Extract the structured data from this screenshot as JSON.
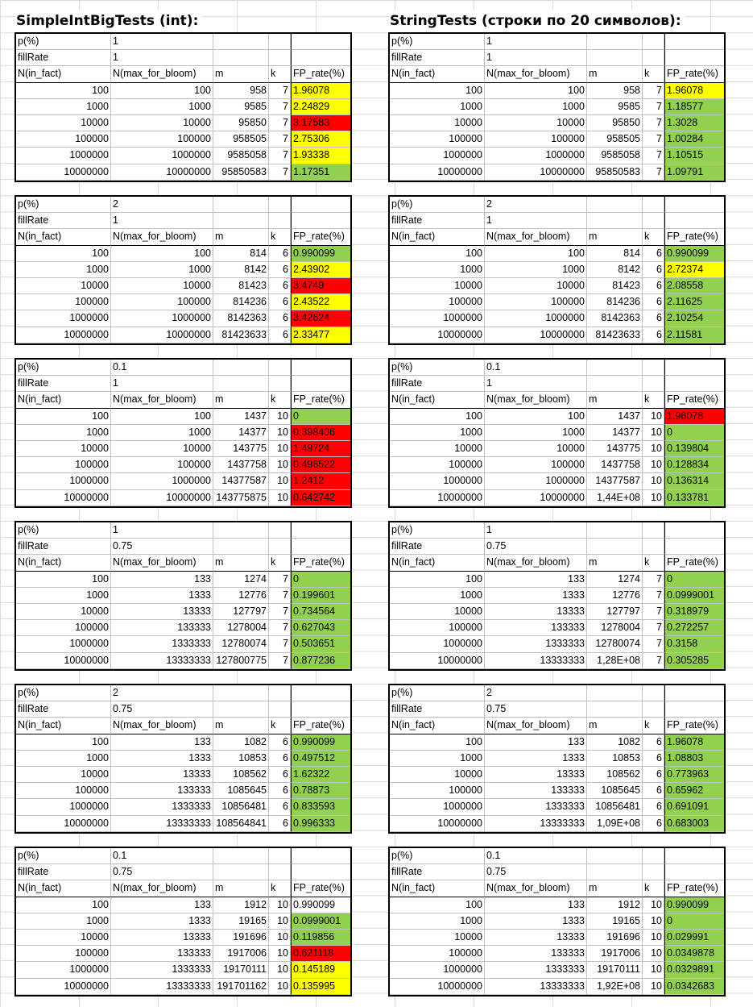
{
  "headings": {
    "left": "SimpleIntBigTests (int):",
    "right": "StringTests (строки по 20 символов):"
  },
  "labels": {
    "p": "p(%)",
    "fillRate": "fillRate",
    "col_n": "N(in_fact)",
    "col_nb": "N(max_for_bloom)",
    "col_m": "m",
    "col_k": "k",
    "col_fp": "FP_rate(%)"
  },
  "colors": {
    "green": "#92d050",
    "yellow": "#ffff00",
    "red": "#ff0000"
  },
  "left_blocks": [
    {
      "p": "1",
      "fillRate": "1",
      "rows": [
        {
          "n": "100",
          "nb": "100",
          "m": "958",
          "k": "7",
          "fp": "1.96078",
          "color": "yellow"
        },
        {
          "n": "1000",
          "nb": "1000",
          "m": "9585",
          "k": "7",
          "fp": "2.24829",
          "color": "yellow"
        },
        {
          "n": "10000",
          "nb": "10000",
          "m": "95850",
          "k": "7",
          "fp": "3.17583",
          "color": "red"
        },
        {
          "n": "100000",
          "nb": "100000",
          "m": "958505",
          "k": "7",
          "fp": "2.75306",
          "color": "yellow"
        },
        {
          "n": "1000000",
          "nb": "1000000",
          "m": "9585058",
          "k": "7",
          "fp": "1.93338",
          "color": "yellow"
        },
        {
          "n": "10000000",
          "nb": "10000000",
          "m": "95850583",
          "k": "7",
          "fp": "1.17351",
          "color": "green"
        }
      ]
    },
    {
      "p": "2",
      "fillRate": "1",
      "rows": [
        {
          "n": "100",
          "nb": "100",
          "m": "814",
          "k": "6",
          "fp": "0.990099",
          "color": "green"
        },
        {
          "n": "1000",
          "nb": "1000",
          "m": "8142",
          "k": "6",
          "fp": "2.43902",
          "color": "yellow"
        },
        {
          "n": "10000",
          "nb": "10000",
          "m": "81423",
          "k": "6",
          "fp": "3.4749",
          "color": "red"
        },
        {
          "n": "100000",
          "nb": "100000",
          "m": "814236",
          "k": "6",
          "fp": "2.43522",
          "color": "yellow"
        },
        {
          "n": "1000000",
          "nb": "1000000",
          "m": "8142363",
          "k": "6",
          "fp": "3.42624",
          "color": "red"
        },
        {
          "n": "10000000",
          "nb": "10000000",
          "m": "81423633",
          "k": "6",
          "fp": "2.33477",
          "color": "yellow"
        }
      ]
    },
    {
      "p": "0.1",
      "fillRate": "1",
      "rows": [
        {
          "n": "100",
          "nb": "100",
          "m": "1437",
          "k": "10",
          "fp": "0",
          "color": "green"
        },
        {
          "n": "1000",
          "nb": "1000",
          "m": "14377",
          "k": "10",
          "fp": "0.398406",
          "color": "red"
        },
        {
          "n": "10000",
          "nb": "10000",
          "m": "143775",
          "k": "10",
          "fp": "1.49724",
          "color": "red"
        },
        {
          "n": "100000",
          "nb": "100000",
          "m": "1437758",
          "k": "10",
          "fp": "0.496522",
          "color": "red"
        },
        {
          "n": "1000000",
          "nb": "1000000",
          "m": "14377587",
          "k": "10",
          "fp": "1.2412",
          "color": "red"
        },
        {
          "n": "10000000",
          "nb": "10000000",
          "m": "143775875",
          "k": "10",
          "fp": "0.642742",
          "color": "red"
        }
      ]
    },
    {
      "p": "1",
      "fillRate": "0.75",
      "rows": [
        {
          "n": "100",
          "nb": "133",
          "m": "1274",
          "k": "7",
          "fp": "0",
          "color": "green"
        },
        {
          "n": "1000",
          "nb": "1333",
          "m": "12776",
          "k": "7",
          "fp": "0.199601",
          "color": "green"
        },
        {
          "n": "10000",
          "nb": "13333",
          "m": "127797",
          "k": "7",
          "fp": "0.734564",
          "color": "green"
        },
        {
          "n": "100000",
          "nb": "133333",
          "m": "1278004",
          "k": "7",
          "fp": "0.627043",
          "color": "green"
        },
        {
          "n": "1000000",
          "nb": "1333333",
          "m": "12780074",
          "k": "7",
          "fp": "0.503651",
          "color": "green"
        },
        {
          "n": "10000000",
          "nb": "13333333",
          "m": "127800775",
          "k": "7",
          "fp": "0.877236",
          "color": "green"
        }
      ]
    },
    {
      "p": "2",
      "fillRate": "0.75",
      "rows": [
        {
          "n": "100",
          "nb": "133",
          "m": "1082",
          "k": "6",
          "fp": "0.990099",
          "color": "green"
        },
        {
          "n": "1000",
          "nb": "1333",
          "m": "10853",
          "k": "6",
          "fp": "0.497512",
          "color": "green"
        },
        {
          "n": "10000",
          "nb": "13333",
          "m": "108562",
          "k": "6",
          "fp": "1.62322",
          "color": "green"
        },
        {
          "n": "100000",
          "nb": "133333",
          "m": "1085645",
          "k": "6",
          "fp": "0.78873",
          "color": "green"
        },
        {
          "n": "1000000",
          "nb": "1333333",
          "m": "10856481",
          "k": "6",
          "fp": "0.833593",
          "color": "green"
        },
        {
          "n": "10000000",
          "nb": "13333333",
          "m": "108564841",
          "k": "6",
          "fp": "0.996333",
          "color": "green"
        }
      ]
    },
    {
      "p": "0.1",
      "fillRate": "0.75",
      "rows": [
        {
          "n": "100",
          "nb": "133",
          "m": "1912",
          "k": "10",
          "fp": "0.990099",
          "color": "none"
        },
        {
          "n": "1000",
          "nb": "1333",
          "m": "19165",
          "k": "10",
          "fp": "0.0999001",
          "color": "green"
        },
        {
          "n": "10000",
          "nb": "13333",
          "m": "191696",
          "k": "10",
          "fp": "0.119856",
          "color": "green"
        },
        {
          "n": "100000",
          "nb": "133333",
          "m": "1917006",
          "k": "10",
          "fp": "0.621118",
          "color": "red"
        },
        {
          "n": "1000000",
          "nb": "1333333",
          "m": "19170111",
          "k": "10",
          "fp": "0.145189",
          "color": "yellow"
        },
        {
          "n": "10000000",
          "nb": "13333333",
          "m": "191701162",
          "k": "10",
          "fp": "0.135995",
          "color": "yellow"
        }
      ]
    }
  ],
  "right_blocks": [
    {
      "p": "1",
      "fillRate": "1",
      "rows": [
        {
          "n": "100",
          "nb": "100",
          "m": "958",
          "k": "7",
          "fp": "1.96078",
          "color": "yellow"
        },
        {
          "n": "1000",
          "nb": "1000",
          "m": "9585",
          "k": "7",
          "fp": "1.18577",
          "color": "green"
        },
        {
          "n": "10000",
          "nb": "10000",
          "m": "95850",
          "k": "7",
          "fp": "1.3028",
          "color": "green"
        },
        {
          "n": "100000",
          "nb": "100000",
          "m": "958505",
          "k": "7",
          "fp": "1.00284",
          "color": "green"
        },
        {
          "n": "1000000",
          "nb": "1000000",
          "m": "9585058",
          "k": "7",
          "fp": "1.10515",
          "color": "green"
        },
        {
          "n": "10000000",
          "nb": "10000000",
          "m": "95850583",
          "k": "7",
          "fp": "1.09791",
          "color": "green"
        }
      ]
    },
    {
      "p": "2",
      "fillRate": "1",
      "rows": [
        {
          "n": "100",
          "nb": "100",
          "m": "814",
          "k": "6",
          "fp": "0.990099",
          "color": "green"
        },
        {
          "n": "1000",
          "nb": "1000",
          "m": "8142",
          "k": "6",
          "fp": "2.72374",
          "color": "yellow"
        },
        {
          "n": "10000",
          "nb": "10000",
          "m": "81423",
          "k": "6",
          "fp": "2.08558",
          "color": "green"
        },
        {
          "n": "100000",
          "nb": "100000",
          "m": "814236",
          "k": "6",
          "fp": "2.11625",
          "color": "green"
        },
        {
          "n": "1000000",
          "nb": "1000000",
          "m": "8142363",
          "k": "6",
          "fp": "2.10254",
          "color": "green"
        },
        {
          "n": "10000000",
          "nb": "10000000",
          "m": "81423633",
          "k": "6",
          "fp": "2.11581",
          "color": "green"
        }
      ]
    },
    {
      "p": "0.1",
      "fillRate": "1",
      "rows": [
        {
          "n": "100",
          "nb": "100",
          "m": "1437",
          "k": "10",
          "fp": "1.96078",
          "color": "red"
        },
        {
          "n": "1000",
          "nb": "1000",
          "m": "14377",
          "k": "10",
          "fp": "0",
          "color": "green"
        },
        {
          "n": "10000",
          "nb": "10000",
          "m": "143775",
          "k": "10",
          "fp": "0.139804",
          "color": "green"
        },
        {
          "n": "100000",
          "nb": "100000",
          "m": "1437758",
          "k": "10",
          "fp": "0.128834",
          "color": "green"
        },
        {
          "n": "1000000",
          "nb": "1000000",
          "m": "14377587",
          "k": "10",
          "fp": "0.136314",
          "color": "green"
        },
        {
          "n": "10000000",
          "nb": "10000000",
          "m": "1,44E+08",
          "k": "10",
          "fp": "0.133781",
          "color": "green"
        }
      ]
    },
    {
      "p": "1",
      "fillRate": "0.75",
      "rows": [
        {
          "n": "100",
          "nb": "133",
          "m": "1274",
          "k": "7",
          "fp": "0",
          "color": "green"
        },
        {
          "n": "1000",
          "nb": "1333",
          "m": "12776",
          "k": "7",
          "fp": "0.0999001",
          "color": "green"
        },
        {
          "n": "10000",
          "nb": "13333",
          "m": "127797",
          "k": "7",
          "fp": "0.318979",
          "color": "green"
        },
        {
          "n": "100000",
          "nb": "133333",
          "m": "1278004",
          "k": "7",
          "fp": "0.272257",
          "color": "green"
        },
        {
          "n": "1000000",
          "nb": "1333333",
          "m": "12780074",
          "k": "7",
          "fp": "0.3158",
          "color": "green"
        },
        {
          "n": "10000000",
          "nb": "13333333",
          "m": "1,28E+08",
          "k": "7",
          "fp": "0.305285",
          "color": "green"
        }
      ]
    },
    {
      "p": "2",
      "fillRate": "0.75",
      "rows": [
        {
          "n": "100",
          "nb": "133",
          "m": "1082",
          "k": "6",
          "fp": "1.96078",
          "color": "green"
        },
        {
          "n": "1000",
          "nb": "1333",
          "m": "10853",
          "k": "6",
          "fp": "1.08803",
          "color": "green"
        },
        {
          "n": "10000",
          "nb": "13333",
          "m": "108562",
          "k": "6",
          "fp": "0.773963",
          "color": "green"
        },
        {
          "n": "100000",
          "nb": "133333",
          "m": "1085645",
          "k": "6",
          "fp": "0.65962",
          "color": "green"
        },
        {
          "n": "1000000",
          "nb": "1333333",
          "m": "10856481",
          "k": "6",
          "fp": "0.691091",
          "color": "green"
        },
        {
          "n": "10000000",
          "nb": "13333333",
          "m": "1,09E+08",
          "k": "6",
          "fp": "0.683003",
          "color": "green"
        }
      ]
    },
    {
      "p": "0.1",
      "fillRate": "0.75",
      "rows": [
        {
          "n": "100",
          "nb": "133",
          "m": "1912",
          "k": "10",
          "fp": "0.990099",
          "color": "green"
        },
        {
          "n": "1000",
          "nb": "1333",
          "m": "19165",
          "k": "10",
          "fp": "0",
          "color": "green"
        },
        {
          "n": "10000",
          "nb": "13333",
          "m": "191696",
          "k": "10",
          "fp": "0.029991",
          "color": "green"
        },
        {
          "n": "100000",
          "nb": "133333",
          "m": "1917006",
          "k": "10",
          "fp": "0.0349878",
          "color": "green"
        },
        {
          "n": "1000000",
          "nb": "1333333",
          "m": "19170111",
          "k": "10",
          "fp": "0.0329891",
          "color": "green"
        },
        {
          "n": "10000000",
          "nb": "13333333",
          "m": "1,92E+08",
          "k": "10",
          "fp": "0.0342683",
          "color": "green"
        }
      ]
    }
  ]
}
